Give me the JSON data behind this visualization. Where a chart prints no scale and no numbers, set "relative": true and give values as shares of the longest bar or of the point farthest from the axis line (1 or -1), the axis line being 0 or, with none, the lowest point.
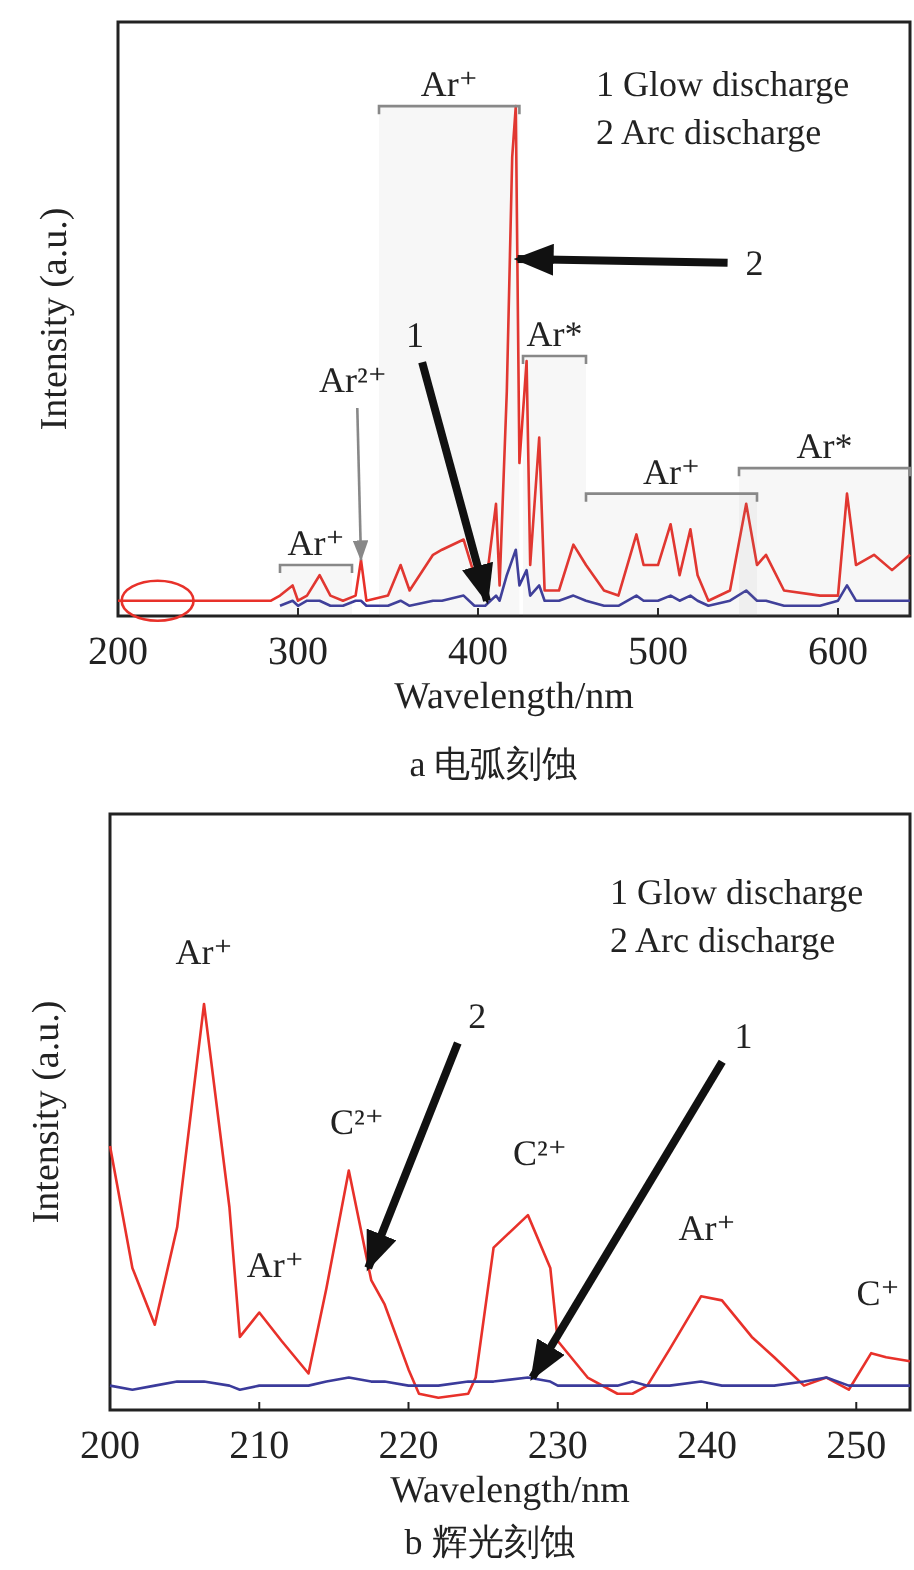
{
  "chart_data": [
    {
      "type": "line",
      "relative": true,
      "title": "a 电弧刻蚀",
      "xlabel": "Wavelength/nm",
      "ylabel": "Intensity (a.u.)",
      "xlim": [
        200,
        640
      ],
      "xticks": [
        200,
        300,
        400,
        500,
        600
      ],
      "grid": false,
      "marker": "none",
      "line_style": "solid",
      "x": [
        200,
        285,
        290,
        297,
        300,
        305,
        312,
        318,
        325,
        332,
        335,
        338,
        350,
        357,
        362,
        375,
        380,
        392,
        398,
        404,
        410,
        412,
        416,
        419,
        421,
        423,
        427,
        429,
        434,
        437,
        445,
        453,
        460,
        470,
        478,
        488,
        492,
        500,
        507,
        512,
        518,
        522,
        528,
        540,
        549,
        555,
        560,
        570,
        590,
        600,
        605,
        610,
        620,
        630,
        640
      ],
      "series": [
        {
          "color": "#e8312a",
          "values": [
            0.03,
            0.03,
            0.04,
            0.06,
            0.03,
            0.04,
            0.08,
            0.04,
            0.03,
            0.04,
            0.11,
            0.03,
            0.04,
            0.1,
            0.05,
            0.12,
            0.13,
            0.15,
            0.08,
            0.05,
            0.22,
            0.06,
            0.44,
            0.9,
            1.0,
            0.3,
            0.5,
            0.1,
            0.35,
            0.05,
            0.05,
            0.14,
            0.1,
            0.05,
            0.04,
            0.16,
            0.1,
            0.1,
            0.18,
            0.08,
            0.17,
            0.08,
            0.03,
            0.05,
            0.22,
            0.1,
            0.12,
            0.05,
            0.04,
            0.04,
            0.24,
            0.1,
            0.12,
            0.09,
            0.12
          ]
        },
        {
          "color": "#3b3b9b",
          "values": [
            null,
            null,
            0.02,
            0.03,
            0.02,
            0.03,
            0.03,
            0.02,
            0.02,
            0.03,
            0.03,
            0.02,
            0.02,
            0.03,
            0.02,
            0.03,
            0.03,
            0.04,
            0.02,
            0.02,
            0.04,
            0.03,
            0.08,
            0.11,
            0.13,
            0.06,
            0.09,
            0.04,
            0.06,
            0.03,
            0.03,
            0.04,
            0.03,
            0.02,
            0.02,
            0.04,
            0.03,
            0.03,
            0.04,
            0.03,
            0.04,
            0.03,
            0.02,
            0.03,
            0.05,
            0.03,
            0.03,
            0.02,
            0.02,
            0.03,
            0.06,
            0.03,
            0.03,
            0.03,
            0.03
          ]
        }
      ],
      "annotations": [
        "1 Glow discharge",
        "2 Arc discharge",
        {
          "text": "Ar²⁺",
          "x": 335,
          "y": 0.11
        },
        {
          "text": "1",
          "x": 405,
          "y": 0.03
        },
        {
          "text": "2",
          "x": 422,
          "y": 0.7
        }
      ],
      "bands": [
        {
          "axis": "x",
          "from": 290,
          "to": 330,
          "label": "Ar⁺",
          "color": "#888888"
        },
        {
          "axis": "x",
          "from": 345,
          "to": 423,
          "label": "Ar⁺",
          "color": "#888888"
        },
        {
          "axis": "x",
          "from": 425,
          "to": 460,
          "label": "Ar*",
          "color": "#888888"
        },
        {
          "axis": "x",
          "from": 460,
          "to": 555,
          "label": "Ar⁺",
          "color": "#888888"
        },
        {
          "axis": "x",
          "from": 545,
          "to": 640,
          "label": "Ar*",
          "color": "#888888"
        }
      ]
    },
    {
      "type": "line",
      "relative": true,
      "title": "b 辉光刻蚀",
      "xlabel": "Wavelength/nm",
      "ylabel": "Intensity (a.u.)",
      "xlim": [
        200,
        253.6
      ],
      "xticks": [
        200,
        210,
        220,
        230,
        240,
        250
      ],
      "grid": false,
      "marker": "none",
      "line_style": "solid",
      "x": [
        200,
        201.5,
        203,
        204.5,
        206.3,
        208,
        208.7,
        210,
        211.5,
        213.3,
        214.5,
        216,
        217.5,
        218.4,
        220,
        220.7,
        222,
        224,
        224.5,
        225.7,
        228,
        229.5,
        230,
        232,
        234,
        235,
        236,
        237.5,
        239.6,
        241,
        243,
        244.5,
        246.5,
        248,
        249.5,
        251,
        252,
        253.6
      ],
      "series": [
        {
          "color": "#e8312a",
          "values": [
            0.65,
            0.35,
            0.21,
            0.45,
            1.0,
            0.5,
            0.18,
            0.24,
            0.17,
            0.09,
            0.3,
            0.59,
            0.32,
            0.26,
            0.1,
            0.04,
            0.03,
            0.04,
            0.08,
            0.4,
            0.48,
            0.35,
            0.17,
            0.08,
            0.04,
            0.04,
            0.06,
            0.15,
            0.28,
            0.27,
            0.18,
            0.13,
            0.06,
            0.08,
            0.05,
            0.14,
            0.13,
            0.12
          ]
        },
        {
          "color": "#3b3b9b",
          "values": [
            0.06,
            0.05,
            0.06,
            0.07,
            0.07,
            0.06,
            0.05,
            0.06,
            0.06,
            0.06,
            0.07,
            0.08,
            0.07,
            0.07,
            0.06,
            0.06,
            0.06,
            0.07,
            0.07,
            0.07,
            0.08,
            0.07,
            0.06,
            0.06,
            0.06,
            0.07,
            0.06,
            0.06,
            0.07,
            0.06,
            0.06,
            0.06,
            0.07,
            0.08,
            0.06,
            0.06,
            0.06,
            0.06
          ]
        }
      ],
      "annotations": [
        "1 Glow discharge",
        "2 Arc discharge",
        {
          "text": "Ar⁺",
          "x": 206.3,
          "y": 1.0
        },
        {
          "text": "Ar⁺",
          "x": 210,
          "y": 0.24
        },
        {
          "text": "C²⁺",
          "x": 216,
          "y": 0.59
        },
        {
          "text": "C²⁺",
          "x": 228,
          "y": 0.48
        },
        {
          "text": "Ar⁺",
          "x": 239.6,
          "y": 0.28
        },
        {
          "text": "C⁺",
          "x": 252,
          "y": 0.14
        },
        {
          "text": "2",
          "x": 217.3,
          "y": 0.35
        },
        {
          "text": "1",
          "x": 228.3,
          "y": 0.08
        }
      ]
    }
  ]
}
